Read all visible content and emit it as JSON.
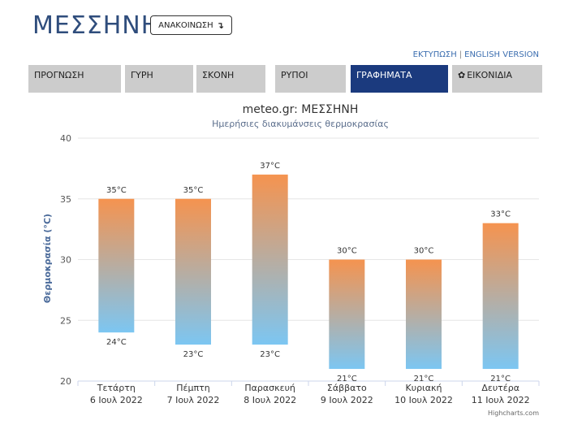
{
  "header": {
    "title": "ΜΕΣΣΗΝΗ",
    "announce_label": "ΑΝΑΚΟΙΝΩΣΗ",
    "announce_icon": "arrow-down-return-icon",
    "print_link": "ΕΚΤΥΠΩΣΗ",
    "separator": "|",
    "english_link": "ENGLISH VERSION"
  },
  "tabs": [
    {
      "label": "ΠΡΟΓΝΩΣΗ",
      "active": false
    },
    {
      "label": "ΓΥΡΗ",
      "active": false
    },
    {
      "label": "ΣΚΟΝΗ",
      "active": false
    },
    {
      "label": "ΡΥΠΟΙ",
      "active": false
    },
    {
      "label": "ΓΡΑΦΗΜΑΤΑ",
      "active": true
    },
    {
      "label": "ΕΙΚΟΝΙΔΙΑ",
      "active": false,
      "icon": "gear-icon"
    }
  ],
  "chart_data": {
    "type": "columnrange",
    "title": "meteo.gr: ΜΕΣΣΗΝΗ",
    "subtitle": "Ημερήσιες διακυμάνσεις θερμοκρασίας",
    "ylabel": "Θερμοκρασία (°C)",
    "ylim": [
      20,
      40
    ],
    "yticks": [
      20,
      25,
      30,
      35,
      40
    ],
    "grid": true,
    "unit": "°C",
    "categories": [
      [
        "Τετάρτη",
        "6 Ιουλ 2022"
      ],
      [
        "Πέμπτη",
        "7 Ιουλ 2022"
      ],
      [
        "Παρασκευή",
        "8 Ιουλ 2022"
      ],
      [
        "Σάββατο",
        "9 Ιουλ 2022"
      ],
      [
        "Κυριακή",
        "10 Ιουλ 2022"
      ],
      [
        "Δευτέρα",
        "11 Ιουλ 2022"
      ]
    ],
    "low": [
      24,
      23,
      23,
      21,
      21,
      21
    ],
    "high": [
      35,
      35,
      37,
      30,
      30,
      33
    ],
    "colors": {
      "top": "#f5934f",
      "bottom": "#7cc6f2"
    },
    "credits": "Highcharts.com"
  }
}
